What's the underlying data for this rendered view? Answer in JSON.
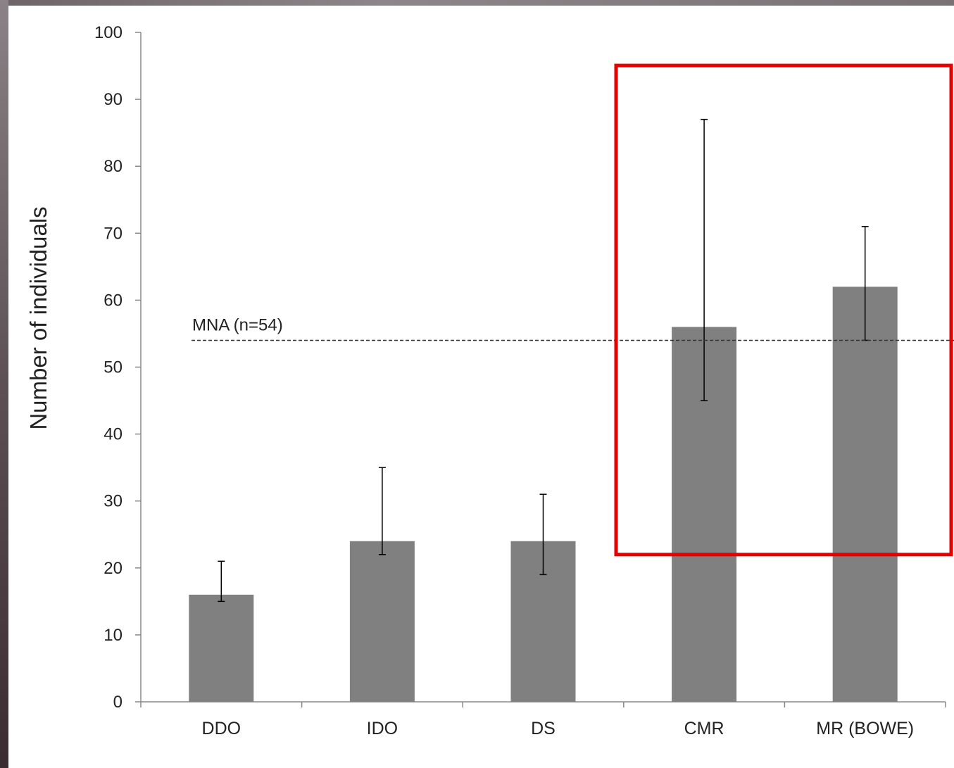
{
  "chart_data": {
    "type": "bar",
    "categories": [
      "DDO",
      "IDO",
      "DS",
      "CMR",
      "MR (BOWE)"
    ],
    "values": [
      16,
      24,
      24,
      56,
      62
    ],
    "error_bars": [
      {
        "low": 15,
        "high": 21
      },
      {
        "low": 22,
        "high": 35
      },
      {
        "low": 19,
        "high": 31
      },
      {
        "low": 45,
        "high": 87
      },
      {
        "low": 54,
        "high": 71
      }
    ],
    "ylabel": "Number of individuals",
    "xlabel": "",
    "title": "",
    "ylim": [
      0,
      100
    ],
    "yticks": [
      0,
      10,
      20,
      30,
      40,
      50,
      60,
      70,
      80,
      90,
      100
    ],
    "grid": false,
    "reference_line": {
      "label": "MNA (n=54)",
      "value": 54,
      "style": "dashed"
    },
    "highlight": {
      "categories": [
        "CMR",
        "MR (BOWE)"
      ],
      "y_from": 22,
      "y_to": 94,
      "color": "#e60000"
    },
    "colors": {
      "bar": "#808080",
      "axis": "#888888",
      "errorbar": "#000000",
      "reference": "#333333"
    }
  }
}
